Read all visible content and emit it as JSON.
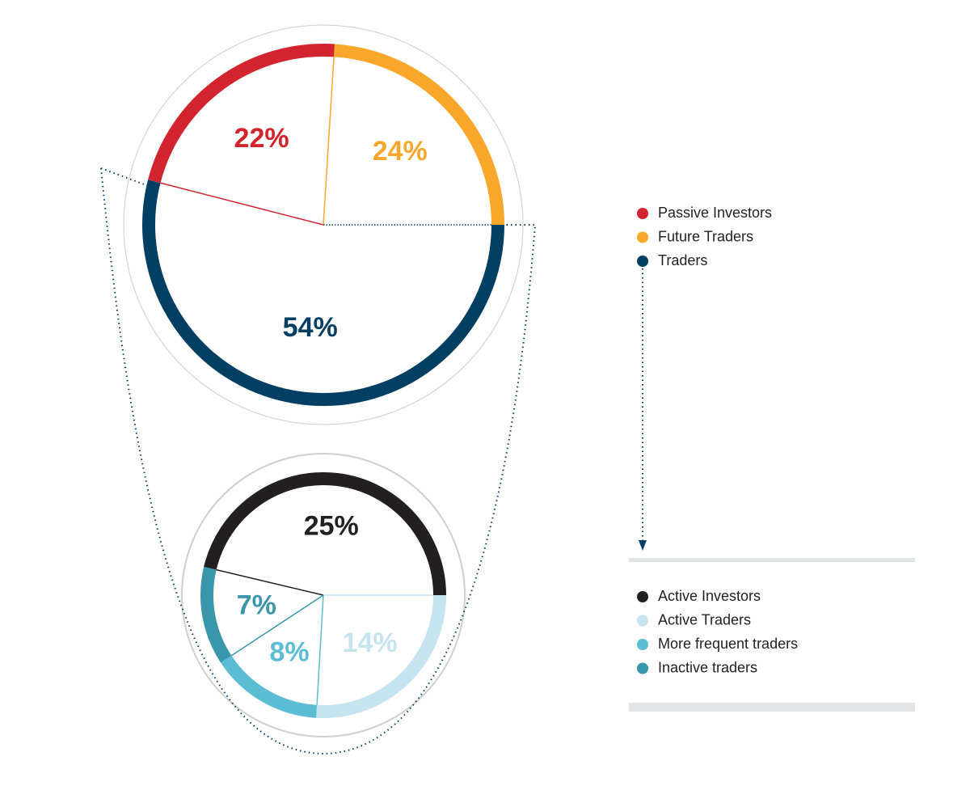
{
  "chart_data": [
    {
      "type": "pie",
      "categories": [
        "Passive Investors",
        "Future Traders",
        "Traders"
      ],
      "values": [
        22,
        24,
        54
      ],
      "value_labels": [
        "22%",
        "24%",
        "54%"
      ],
      "colors": [
        "#d3232e",
        "#f9a72b",
        "#033f63"
      ]
    },
    {
      "type": "pie",
      "categories": [
        "Active Investors",
        "Active Traders",
        "More frequent traders",
        "Inactive traders"
      ],
      "values": [
        25,
        14,
        8,
        7
      ],
      "value_labels": [
        "25%",
        "14%",
        "8%",
        "7%"
      ],
      "colors": [
        "#231f20",
        "#c5e4ef",
        "#5bbcd3",
        "#3a96aa"
      ]
    }
  ]
}
